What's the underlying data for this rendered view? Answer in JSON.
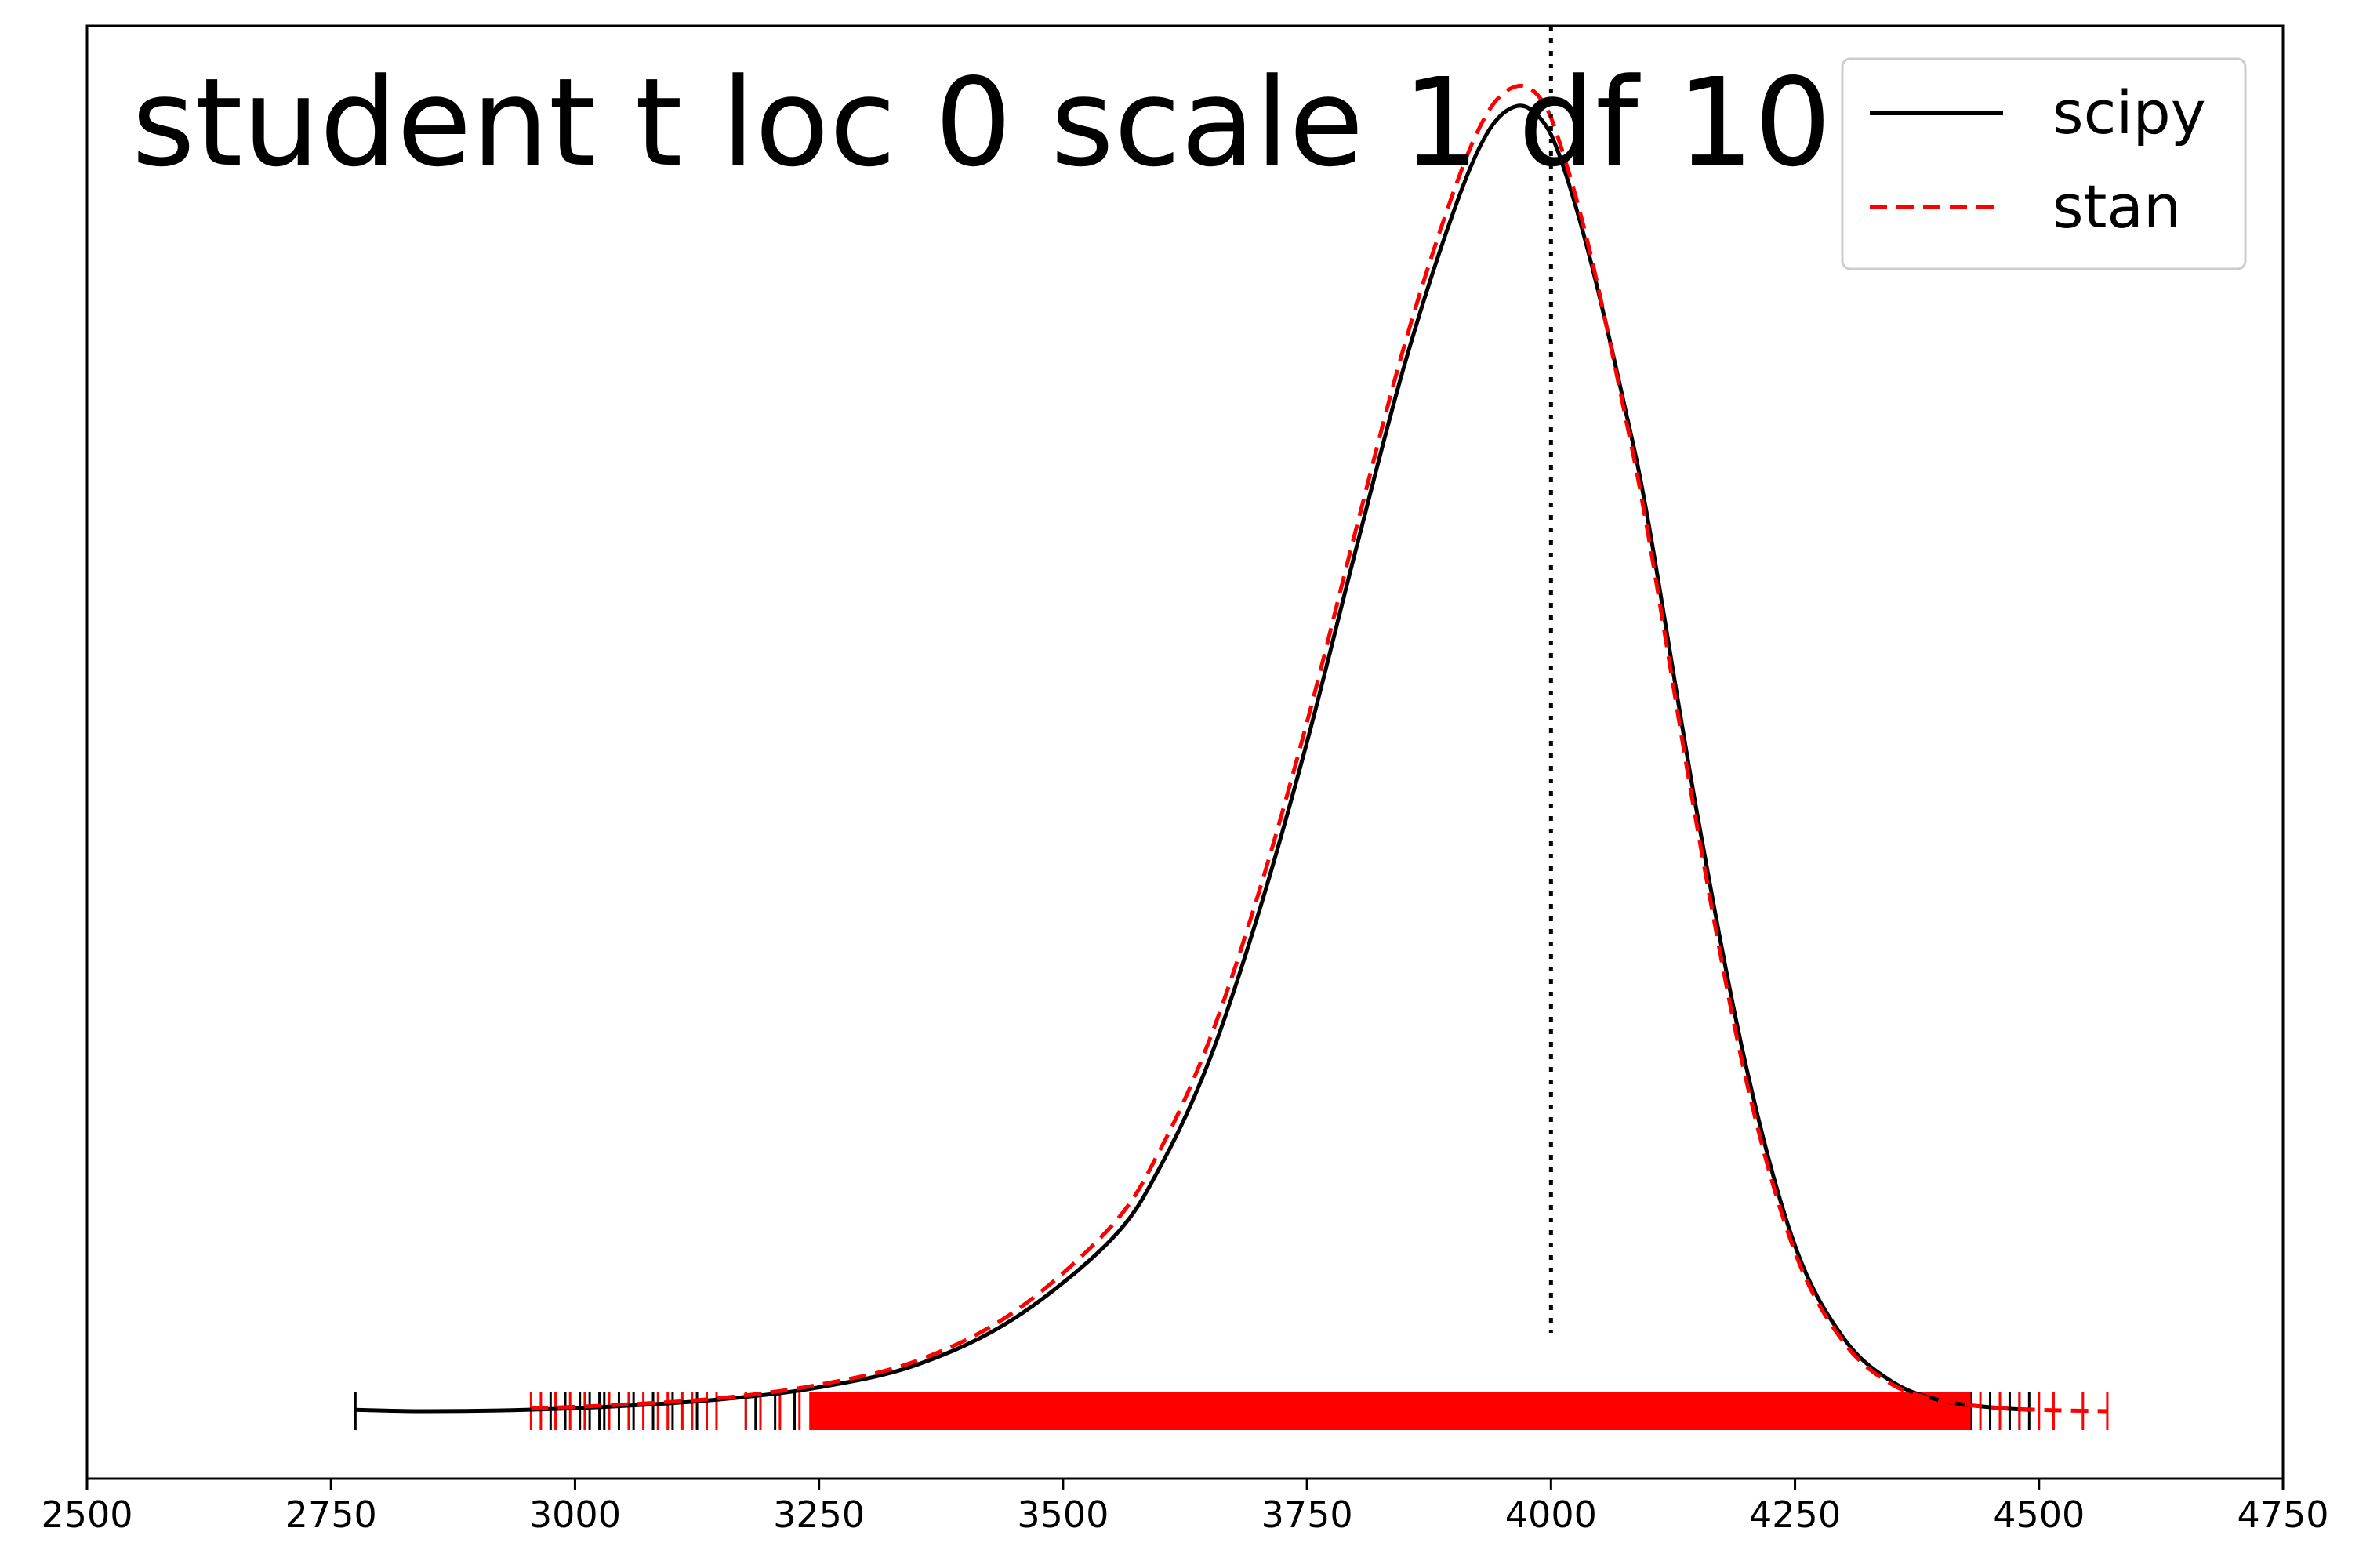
{
  "chart_data": {
    "type": "line",
    "title": "student t loc 0 scale 1 df 10",
    "xlabel": "",
    "ylabel": "",
    "xlim": [
      2500,
      4750
    ],
    "ylim": [
      0,
      1
    ],
    "xticks": [
      2500,
      2750,
      3000,
      3250,
      3500,
      3750,
      4000,
      4250,
      4500,
      4750
    ],
    "tick_labels": [
      "2500",
      "2750",
      "3000",
      "3250",
      "3500",
      "3750",
      "4000",
      "4250",
      "4500",
      "4750"
    ],
    "y_ticks_visible": false,
    "grid": false,
    "legend_position": "top-right",
    "reference_line": {
      "x": 4000,
      "style": "dotted",
      "color": "#000000"
    },
    "series": [
      {
        "name": "scipy",
        "color": "#000000",
        "style": "solid",
        "x": [
          2775,
          2850,
          2950,
          3050,
          3150,
          3250,
          3350,
          3450,
          3550,
          3600,
          3650,
          3700,
          3750,
          3800,
          3850,
          3900,
          3935,
          3965,
          3990,
          4010,
          4040,
          4075,
          4100,
          4150,
          4200,
          4250,
          4300,
          4350,
          4400,
          4450,
          4490
        ],
        "y": [
          0.001,
          0.0,
          0.001,
          0.004,
          0.009,
          0.018,
          0.035,
          0.07,
          0.13,
          0.185,
          0.265,
          0.375,
          0.505,
          0.65,
          0.79,
          0.905,
          0.965,
          0.985,
          0.975,
          0.945,
          0.87,
          0.76,
          0.67,
          0.45,
          0.26,
          0.125,
          0.055,
          0.022,
          0.008,
          0.003,
          0.001
        ],
        "rug": [
          2775,
          2955,
          2975,
          2990,
          3005,
          3015,
          3025,
          3030,
          3045,
          3060,
          3080,
          3100,
          3125,
          3175,
          3185,
          3205,
          3225,
          3245,
          3270,
          3300,
          3330,
          3360,
          3390,
          4395,
          4405,
          4420,
          4430,
          4450,
          4470,
          4480,
          4490
        ]
      },
      {
        "name": "stan",
        "color": "#ff0000",
        "style": "dashed",
        "x": [
          2955,
          3050,
          3150,
          3250,
          3350,
          3450,
          3550,
          3600,
          3650,
          3700,
          3750,
          3800,
          3850,
          3900,
          3935,
          3965,
          3990,
          4010,
          4040,
          4075,
          4100,
          4150,
          4200,
          4250,
          4300,
          4350,
          4400,
          4450,
          4500,
          4570
        ],
        "y": [
          0.002,
          0.005,
          0.01,
          0.02,
          0.038,
          0.075,
          0.14,
          0.198,
          0.28,
          0.39,
          0.52,
          0.665,
          0.805,
          0.92,
          0.98,
          1.0,
          0.99,
          0.955,
          0.875,
          0.755,
          0.66,
          0.44,
          0.25,
          0.12,
          0.052,
          0.02,
          0.008,
          0.003,
          0.001,
          0.0
        ],
        "rug": [
          2955,
          2965,
          2980,
          2995,
          3010,
          3035,
          3055,
          3070,
          3085,
          3095,
          3110,
          3120,
          3135,
          3145,
          3175,
          3190,
          3210,
          3230,
          3250,
          3265,
          3285,
          3305,
          3325,
          3345,
          3365,
          3385,
          3400,
          4440,
          4460,
          4480,
          4500,
          4515,
          4545,
          4570
        ],
        "band": [
          3240,
          4430
        ]
      }
    ]
  }
}
